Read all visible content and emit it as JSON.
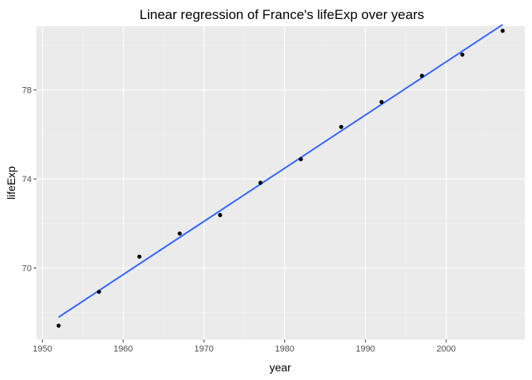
{
  "chart_data": {
    "type": "scatter",
    "title": "Linear regression of France's lifeExp over years",
    "xlabel": "year",
    "ylabel": "lifeExp",
    "xlim": [
      1949.25,
      2009.75
    ],
    "ylim": [
      66.78,
      80.87
    ],
    "x_ticks": [
      1950,
      1960,
      1970,
      1980,
      1990,
      2000
    ],
    "y_ticks": [
      70,
      74,
      78
    ],
    "grid": true,
    "points": [
      {
        "x": 1952,
        "y": 67.41
      },
      {
        "x": 1957,
        "y": 68.93
      },
      {
        "x": 1962,
        "y": 70.51
      },
      {
        "x": 1967,
        "y": 71.55
      },
      {
        "x": 1972,
        "y": 72.38
      },
      {
        "x": 1977,
        "y": 73.83
      },
      {
        "x": 1982,
        "y": 74.89
      },
      {
        "x": 1987,
        "y": 76.34
      },
      {
        "x": 1992,
        "y": 77.46
      },
      {
        "x": 1997,
        "y": 78.64
      },
      {
        "x": 2002,
        "y": 79.59
      },
      {
        "x": 2007,
        "y": 80.66
      }
    ],
    "fit_line": {
      "x": [
        1952,
        2007
      ],
      "y": [
        67.79,
        80.94
      ]
    },
    "colors": {
      "panel_background": "#ebebeb",
      "grid_major": "#ffffff",
      "grid_minor": "#f2f2f2",
      "points": "#000000",
      "fit_line": "#3366ff",
      "tick_text": "#4d4d4d"
    }
  }
}
